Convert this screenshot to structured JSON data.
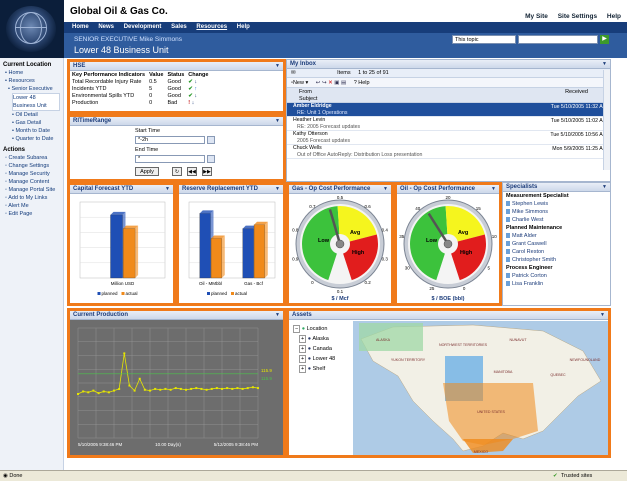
{
  "header": {
    "company": "Global Oil & Gas Co.",
    "links": [
      "My Site",
      "Site Settings",
      "Help"
    ],
    "nav": [
      "Home",
      "News",
      "Development",
      "Sales",
      "Resources",
      "Help"
    ],
    "selected_nav": "Resources",
    "role_label": "SENIOR EXECUTIVE Mike Simmons",
    "title": "Lower 48 Business Unit",
    "search_scope": "This topic",
    "search_value": ""
  },
  "leftnav": {
    "current_heading": "Current Location",
    "current_items": [
      "Home",
      "Resources",
      "Senior Executive"
    ],
    "selected": "Lower 48 Business Unit",
    "sub_items": [
      "Oil Detail",
      "Gas Detail",
      "Month to Date",
      "Quarter to Date"
    ],
    "actions_heading": "Actions",
    "actions": [
      "Create Subarea",
      "Change Settings",
      "Manage Security",
      "Manage Content",
      "Manage Portal Site",
      "Add to My Links",
      "Alert Me",
      "Edit Page"
    ]
  },
  "hse": {
    "title": "HSE",
    "columns": [
      "Key Performance Indicators",
      "Value",
      "Status",
      "Change"
    ],
    "rows": [
      {
        "kpi": "Total Recordable Injury Rate",
        "value": "0.5",
        "status": "Good",
        "change": "down"
      },
      {
        "kpi": "Incidents YTD",
        "value": "5",
        "status": "Good",
        "change": "up"
      },
      {
        "kpi": "Environmental Spills YTD",
        "value": "0",
        "status": "Good",
        "change": "down"
      },
      {
        "kpi": "Production",
        "value": "0",
        "status": "Bad",
        "change": "down"
      }
    ]
  },
  "timerange": {
    "title": "RITimeRange",
    "start_label": "Start Time",
    "start_value": "*-2h",
    "end_label": "End Time",
    "end_value": "*",
    "apply_label": "Apply"
  },
  "inbox": {
    "title": "My Inbox",
    "items_label": "Items",
    "range_label": "1 to 25 of 91",
    "new_label": "New",
    "help_label": "Help",
    "col_from": "From",
    "col_subject": "Subject",
    "col_received": "Received",
    "messages": [
      {
        "from": "Amber Eldridge",
        "subject": "RE: Unit 1 Operations",
        "date": "Tue 5/10/2005 11:32 AM",
        "selected": true
      },
      {
        "from": "Heather Levin",
        "subject": "RE: 2005 Forecast updates",
        "date": "Tue 5/10/2005 11:02 AM",
        "selected": false
      },
      {
        "from": "Kathy Otterson",
        "subject": "2005 Forecast updates",
        "date": "Tue 5/10/2005 10:56 AM",
        "selected": false
      },
      {
        "from": "Chuck Wells",
        "subject": "Out of Office AutoReply: Distribution Loss presentation",
        "date": "Mon 5/9/2005 11:25 AM",
        "selected": false
      }
    ]
  },
  "capital": {
    "title": "Capital Forecast  YTD",
    "chart_data": {
      "type": "bar",
      "title": "Capital Forecast YTD",
      "categories": [
        "Million USD"
      ],
      "series": [
        {
          "name": "planned",
          "values": [
            83
          ]
        },
        {
          "name": "actual",
          "values": [
            65
          ]
        }
      ],
      "ylim": [
        0,
        100
      ],
      "legend": "bottom",
      "colors": [
        "#1f4fb5",
        "#f08a1a"
      ]
    }
  },
  "reserve": {
    "title": "Reserve Replacement  YTD",
    "chart_data": {
      "type": "bar",
      "title": "Reserve Replacement YTD",
      "categories": [
        "Oil - MMbbl",
        "Gas - Bcf"
      ],
      "series": [
        {
          "name": "planned",
          "values": [
            85,
            65
          ]
        },
        {
          "name": "actual",
          "values": [
            52,
            70
          ]
        }
      ],
      "ylim": [
        0,
        100
      ],
      "legend": "bottom",
      "colors": [
        "#1f4fb5",
        "#f08a1a"
      ]
    }
  },
  "gauges": [
    {
      "title": "Gas - Op Cost Performance",
      "unit": "$ / Mcf",
      "zones": [
        "Low",
        "Avg",
        "High"
      ],
      "ticks": [
        "0.5",
        "0.6",
        "0.4",
        "0.3",
        "0.2",
        "0.1",
        "0",
        "0.9",
        "0.8",
        "0.7"
      ],
      "needle_value": 0.45
    },
    {
      "title": "Oil - Op Cost Performance",
      "unit": "$ / BOE (bbl)",
      "zones": [
        "Low",
        "Avg",
        "High"
      ],
      "ticks": [
        "20",
        "15",
        "10",
        "5",
        "0",
        "25",
        "30",
        "35",
        "40"
      ],
      "needle_value": 16
    }
  ],
  "specialists": {
    "title": "Specialists",
    "groups": [
      {
        "name": "Measurement Specialist",
        "people": [
          "Stephen Lewis",
          "Mike Simmons",
          "Charlie West"
        ]
      },
      {
        "name": "Planned Maintenance",
        "people": [
          "Matt Alder",
          "Grant Caswell",
          "Carol Reston",
          "Christopher Smith"
        ]
      },
      {
        "name": "Process Engineer",
        "people": [
          "Patrick Corton",
          "Lisa Franklin"
        ]
      }
    ]
  },
  "production": {
    "title": "Current Production",
    "x_start": "5/10/2005 9:38:46 PM",
    "x_mid": "10.00 Day(s)",
    "x_end": "5/12/2005 9:38:46 PM",
    "legend_values": [
      "115.9",
      "115.9"
    ],
    "chart_data": {
      "type": "line",
      "title": "Current Production",
      "series": [
        {
          "name": "",
          "color": "#e6e600",
          "values": [
            92,
            95,
            94,
            96,
            93,
            95,
            94,
            96,
            98,
            140,
            102,
            96,
            110,
            97,
            96,
            98,
            97,
            98,
            97,
            99,
            98,
            97,
            98,
            99,
            98,
            97,
            98,
            99,
            98,
            99,
            98,
            99,
            98,
            99,
            100,
            99
          ]
        },
        {
          "name": "",
          "color": "#4cc24c",
          "values": [
            115.9,
            115.9
          ]
        }
      ]
    }
  },
  "assets": {
    "title": "Assets",
    "tree_root": "Location",
    "tree_items": [
      "Alaska",
      "Canada",
      "Lower 48",
      "Shelf"
    ],
    "map_labels": [
      "ALASKA",
      "NORTHWEST TERRITORIES",
      "NUNAVUT",
      "YUKON TERRITORY",
      "MANITOBA",
      "QUEBEC",
      "NEWFOUNDLAND",
      "UNITED STATES",
      "MEXICO"
    ]
  },
  "statusbar": {
    "left": "Done",
    "right": "Trusted sites"
  }
}
